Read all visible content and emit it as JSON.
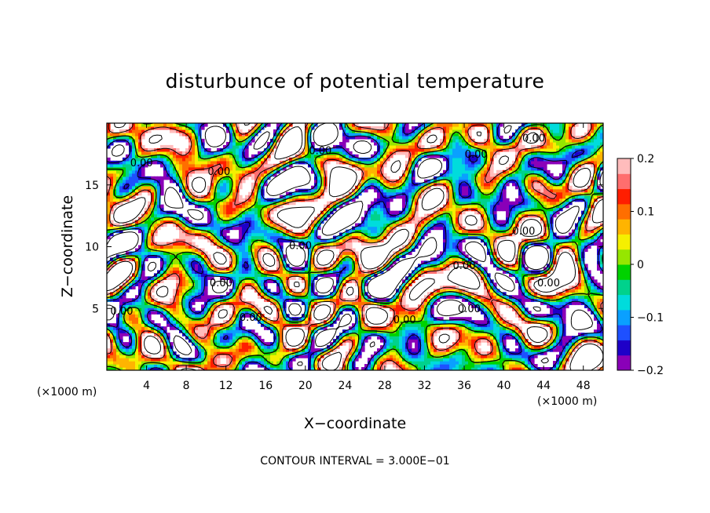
{
  "chart_data": {
    "type": "heatmap",
    "title": "disturbunce of potential temperature",
    "xlabel": "X−coordinate",
    "ylabel": "Z−coordinate",
    "x_unit_label": "(×1000 m)",
    "y_unit_label": "(×1000 m)",
    "xlim": [
      0,
      50
    ],
    "ylim": [
      0,
      20
    ],
    "x_ticks": [
      4,
      8,
      12,
      16,
      20,
      24,
      28,
      32,
      36,
      40,
      44,
      48
    ],
    "y_ticks": [
      5,
      10,
      15
    ],
    "colorbar": {
      "range": [
        -0.2,
        0.2
      ],
      "tick_labels": [
        "0.2",
        "0.1",
        "0",
        "−0.1",
        "−0.2"
      ],
      "tick_values": [
        0.2,
        0.1,
        0,
        -0.1,
        -0.2
      ],
      "colors": [
        "#8a00b8",
        "#1e00c8",
        "#1e50ff",
        "#0aa0ff",
        "#00dcdc",
        "#00d28c",
        "#00d200",
        "#96e600",
        "#f5f000",
        "#ffb400",
        "#ff6e00",
        "#ff1e00",
        "#ff6e6e",
        "#ffbcbc"
      ]
    },
    "contour_interval_text": "CONTOUR INTERVAL = 3.000E−01",
    "contour_labels": [
      {
        "text": "0.00",
        "x": 3.5,
        "y": 16.5
      },
      {
        "text": "0.00",
        "x": 11.3,
        "y": 15.8
      },
      {
        "text": "0.00",
        "x": 21.5,
        "y": 17.5
      },
      {
        "text": "0.00",
        "x": 37.2,
        "y": 17.2
      },
      {
        "text": "0.00",
        "x": 43.0,
        "y": 18.5
      },
      {
        "text": "0.00",
        "x": 19.5,
        "y": 9.8
      },
      {
        "text": "0.00",
        "x": 11.5,
        "y": 6.8
      },
      {
        "text": "0.00",
        "x": 14.5,
        "y": 4.0
      },
      {
        "text": "0.00",
        "x": 42.0,
        "y": 11.0
      },
      {
        "text": "0.00",
        "x": 36.0,
        "y": 8.2
      },
      {
        "text": "0.00",
        "x": 44.5,
        "y": 6.8
      },
      {
        "text": "0.00",
        "x": 36.5,
        "y": 4.7
      },
      {
        "text": "0.00",
        "x": 30.0,
        "y": 3.8
      },
      {
        "text": "0.00",
        "x": 1.5,
        "y": 4.5
      }
    ]
  }
}
